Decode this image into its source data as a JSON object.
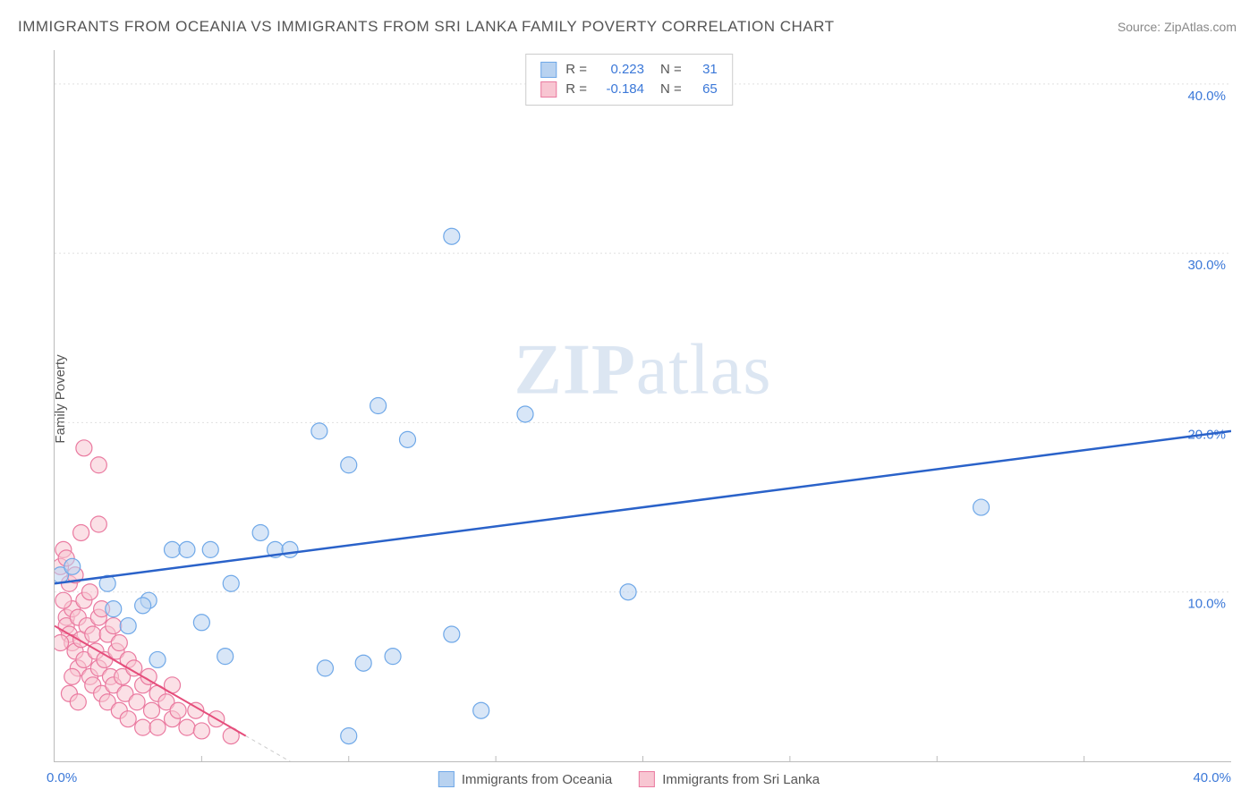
{
  "title": "IMMIGRANTS FROM OCEANIA VS IMMIGRANTS FROM SRI LANKA FAMILY POVERTY CORRELATION CHART",
  "source": "Source: ZipAtlas.com",
  "y_axis_label": "Family Poverty",
  "watermark_bold": "ZIP",
  "watermark_rest": "atlas",
  "legend_top": {
    "series": [
      {
        "swatch_fill": "#b8d2f0",
        "swatch_border": "#6fa8e8",
        "r_label": "R =",
        "r_value": "0.223",
        "n_label": "N =",
        "n_value": "31"
      },
      {
        "swatch_fill": "#f8c6d2",
        "swatch_border": "#ea7aa0",
        "r_label": "R =",
        "r_value": "-0.184",
        "n_label": "N =",
        "n_value": "65"
      }
    ]
  },
  "legend_bottom": {
    "series": [
      {
        "swatch_fill": "#b8d2f0",
        "swatch_border": "#6fa8e8",
        "label": "Immigrants from Oceania"
      },
      {
        "swatch_fill": "#f8c6d2",
        "swatch_border": "#ea7aa0",
        "label": "Immigrants from Sri Lanka"
      }
    ]
  },
  "chart": {
    "type": "scatter",
    "xlim": [
      0,
      40
    ],
    "ylim": [
      0,
      42
    ],
    "x_ticks_bottom": [
      "0.0%",
      "40.0%"
    ],
    "y_gridlines": [
      {
        "value": 10,
        "label": "10.0%"
      },
      {
        "value": 20,
        "label": "20.0%"
      },
      {
        "value": 30,
        "label": "30.0%"
      },
      {
        "value": 40,
        "label": "40.0%"
      }
    ],
    "x_gridlines_minor": [
      5,
      10,
      15,
      20,
      25,
      30,
      35
    ],
    "grid_color": "#e0e0e0",
    "grid_dash": "2,3",
    "y_tick_color": "#3b78d8",
    "background_color": "#ffffff",
    "marker_radius": 9,
    "marker_stroke_width": 1.2,
    "series_blue": {
      "fill": "#b8d2f0",
      "fill_opacity": 0.55,
      "stroke": "#6fa8e8",
      "trend_color": "#2a62c9",
      "trend_width": 2.5,
      "trend": {
        "x1": 0,
        "y1": 10.5,
        "x2": 40,
        "y2": 19.5
      },
      "points": [
        [
          0.2,
          11.0
        ],
        [
          0.6,
          11.5
        ],
        [
          1.8,
          10.5
        ],
        [
          2.5,
          8.0
        ],
        [
          3.2,
          9.5
        ],
        [
          3.5,
          6.0
        ],
        [
          4.0,
          12.5
        ],
        [
          4.5,
          12.5
        ],
        [
          5.0,
          8.2
        ],
        [
          5.3,
          12.5
        ],
        [
          5.8,
          6.2
        ],
        [
          6.0,
          10.5
        ],
        [
          7.0,
          13.5
        ],
        [
          7.5,
          12.5
        ],
        [
          8.0,
          12.5
        ],
        [
          9.0,
          19.5
        ],
        [
          9.2,
          5.5
        ],
        [
          10.0,
          17.5
        ],
        [
          10.0,
          1.5
        ],
        [
          10.5,
          5.8
        ],
        [
          11.0,
          21.0
        ],
        [
          11.5,
          6.2
        ],
        [
          12.0,
          19.0
        ],
        [
          13.5,
          31.0
        ],
        [
          13.5,
          7.5
        ],
        [
          14.5,
          3.0
        ],
        [
          16.0,
          20.5
        ],
        [
          19.5,
          10.0
        ],
        [
          31.5,
          15.0
        ],
        [
          2.0,
          9.0
        ],
        [
          3.0,
          9.2
        ]
      ]
    },
    "series_pink": {
      "fill": "#f8c6d2",
      "fill_opacity": 0.55,
      "stroke": "#ea7aa0",
      "trend_color": "#e54d7b",
      "trend_width": 2,
      "trend": {
        "x1": 0,
        "y1": 8.0,
        "x2": 6.5,
        "y2": 1.5
      },
      "trend_dash_ext": {
        "x1": 6.5,
        "y1": 1.5,
        "x2": 8.5,
        "y2": -0.5
      },
      "points": [
        [
          0.2,
          11.5
        ],
        [
          0.3,
          12.5
        ],
        [
          0.4,
          8.5
        ],
        [
          0.4,
          8.0
        ],
        [
          0.5,
          10.5
        ],
        [
          0.5,
          7.5
        ],
        [
          0.6,
          9.0
        ],
        [
          0.6,
          7.0
        ],
        [
          0.7,
          11.0
        ],
        [
          0.7,
          6.5
        ],
        [
          0.8,
          8.5
        ],
        [
          0.8,
          5.5
        ],
        [
          0.9,
          13.5
        ],
        [
          0.9,
          7.2
        ],
        [
          1.0,
          9.5
        ],
        [
          1.0,
          6.0
        ],
        [
          1.1,
          8.0
        ],
        [
          1.2,
          5.0
        ],
        [
          1.2,
          10.0
        ],
        [
          1.3,
          7.5
        ],
        [
          1.3,
          4.5
        ],
        [
          1.4,
          6.5
        ],
        [
          1.5,
          8.5
        ],
        [
          1.5,
          5.5
        ],
        [
          1.6,
          4.0
        ],
        [
          1.6,
          9.0
        ],
        [
          1.7,
          6.0
        ],
        [
          1.8,
          7.5
        ],
        [
          1.8,
          3.5
        ],
        [
          1.9,
          5.0
        ],
        [
          2.0,
          8.0
        ],
        [
          2.0,
          4.5
        ],
        [
          2.1,
          6.5
        ],
        [
          2.2,
          3.0
        ],
        [
          2.2,
          7.0
        ],
        [
          2.3,
          5.0
        ],
        [
          2.4,
          4.0
        ],
        [
          2.5,
          6.0
        ],
        [
          2.5,
          2.5
        ],
        [
          2.7,
          5.5
        ],
        [
          2.8,
          3.5
        ],
        [
          3.0,
          4.5
        ],
        [
          3.0,
          2.0
        ],
        [
          3.2,
          5.0
        ],
        [
          3.3,
          3.0
        ],
        [
          3.5,
          4.0
        ],
        [
          3.5,
          2.0
        ],
        [
          3.8,
          3.5
        ],
        [
          4.0,
          2.5
        ],
        [
          4.0,
          4.5
        ],
        [
          4.2,
          3.0
        ],
        [
          4.5,
          2.0
        ],
        [
          4.8,
          3.0
        ],
        [
          5.0,
          1.8
        ],
        [
          5.5,
          2.5
        ],
        [
          6.0,
          1.5
        ],
        [
          1.0,
          18.5
        ],
        [
          1.5,
          17.5
        ],
        [
          1.5,
          14.0
        ],
        [
          0.4,
          12.0
        ],
        [
          0.3,
          9.5
        ],
        [
          0.2,
          7.0
        ],
        [
          0.6,
          5.0
        ],
        [
          0.5,
          4.0
        ],
        [
          0.8,
          3.5
        ]
      ]
    }
  }
}
